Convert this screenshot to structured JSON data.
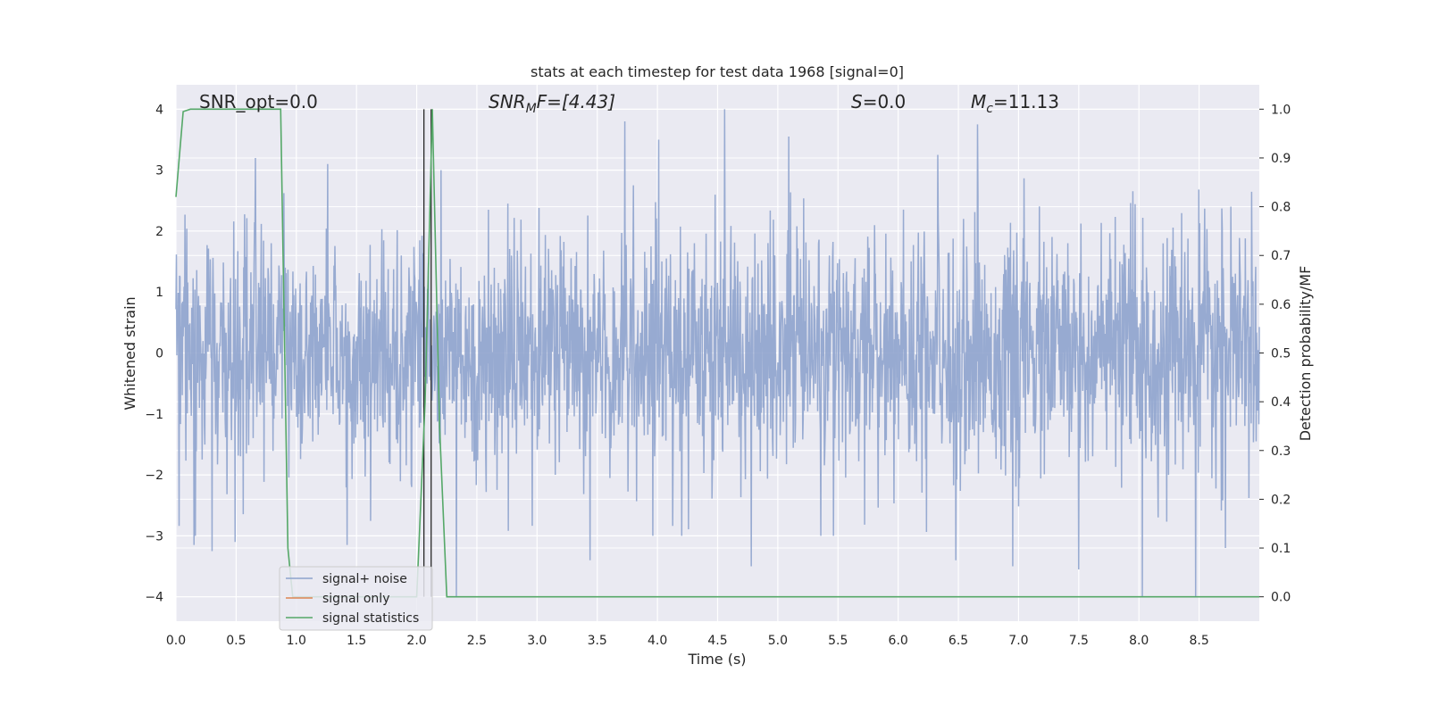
{
  "chart_data": {
    "type": "line",
    "title": "stats at each timestep for test data 1968 [signal=0]",
    "xlabel": "Time (s)",
    "ylabel": "Whitened strain",
    "y2label": "Detection probability/MF",
    "xlim": [
      0.0,
      9.0
    ],
    "ylim": [
      -4.4,
      4.4
    ],
    "y2lim": [
      -0.05,
      1.05
    ],
    "xticks": [
      "0.0",
      "0.5",
      "1.0",
      "1.5",
      "2.0",
      "2.5",
      "3.0",
      "3.5",
      "4.0",
      "4.5",
      "5.0",
      "5.5",
      "6.0",
      "6.5",
      "7.0",
      "7.5",
      "8.0",
      "8.5"
    ],
    "xtick_values": [
      0.0,
      0.5,
      1.0,
      1.5,
      2.0,
      2.5,
      3.0,
      3.5,
      4.0,
      4.5,
      5.0,
      5.5,
      6.0,
      6.5,
      7.0,
      7.5,
      8.0,
      8.5
    ],
    "yticks": [
      "4",
      "3",
      "2",
      "1",
      "0",
      "−1",
      "−2",
      "−3",
      "−4"
    ],
    "ytick_values": [
      4,
      3,
      2,
      1,
      0,
      -1,
      -2,
      -3,
      -4
    ],
    "y2ticks": [
      "1.0",
      "0.9",
      "0.8",
      "0.7",
      "0.6",
      "0.5",
      "0.4",
      "0.3",
      "0.2",
      "0.1",
      "0.0"
    ],
    "y2tick_values": [
      1.0,
      0.9,
      0.8,
      0.7,
      0.6,
      0.5,
      0.4,
      0.3,
      0.2,
      0.1,
      0.0
    ],
    "grid": true,
    "legend_placement": "lower-left",
    "annotations": {
      "snr_opt": "SNR_opt=0.0",
      "snr_mf_main": "SNR",
      "snr_mf_sub": "M",
      "snr_mf_rest": "F=[4.43]",
      "s_var": "S",
      "s_rest": "=0.0",
      "mc_main": "M",
      "mc_sub": "c",
      "mc_rest": "=11.13"
    },
    "series": [
      {
        "name": "signal+ noise",
        "color": "#8ea3cd",
        "axis": "left",
        "envelope_typical": [
          -1.9,
          2.0
        ],
        "peaks": [
          {
            "x": 4.56,
            "y": 4.0
          },
          {
            "x": 3.73,
            "y": 3.8
          },
          {
            "x": 6.66,
            "y": 3.75
          },
          {
            "x": 4.01,
            "y": 3.5
          },
          {
            "x": 5.09,
            "y": 3.55
          },
          {
            "x": 6.33,
            "y": 3.25
          },
          {
            "x": 0.66,
            "y": 3.2
          },
          {
            "x": 1.26,
            "y": 3.1
          },
          {
            "x": 8.47,
            "y": 3.1
          },
          {
            "x": 0.15,
            "y": -3.15
          },
          {
            "x": 0.3,
            "y": -3.25
          },
          {
            "x": 0.49,
            "y": -3.1
          },
          {
            "x": 1.42,
            "y": -3.15
          },
          {
            "x": 3.44,
            "y": -3.4
          },
          {
            "x": 4.78,
            "y": -3.5
          },
          {
            "x": 6.48,
            "y": -3.4
          },
          {
            "x": 6.95,
            "y": -3.5
          },
          {
            "x": 7.5,
            "y": -3.55
          },
          {
            "x": 8.03,
            "y": -4.0
          },
          {
            "x": 8.47,
            "y": -4.0
          },
          {
            "x": 2.33,
            "y": -4.0
          },
          {
            "x": 8.72,
            "y": -3.2
          }
        ]
      },
      {
        "name": "signal only",
        "color": "#dd8452",
        "axis": "left",
        "values": []
      },
      {
        "name": "signal statistics",
        "color": "#55a868",
        "axis": "right",
        "x": [
          0.0,
          0.06,
          0.12,
          0.6,
          0.87,
          0.93,
          0.97,
          1.0,
          1.2,
          2.0,
          2.07,
          2.13,
          2.19,
          2.25,
          9.0
        ],
        "y": [
          0.82,
          0.995,
          1.0,
          1.0,
          1.0,
          0.1,
          0.0,
          0.0,
          0.0,
          0.0,
          0.4,
          1.0,
          0.35,
          0.0,
          0.0
        ]
      }
    ],
    "vertical_lines": {
      "color": "#262626",
      "x": [
        2.06,
        2.12
      ],
      "y_top": 4.0,
      "y_bottom": -4.0
    }
  }
}
